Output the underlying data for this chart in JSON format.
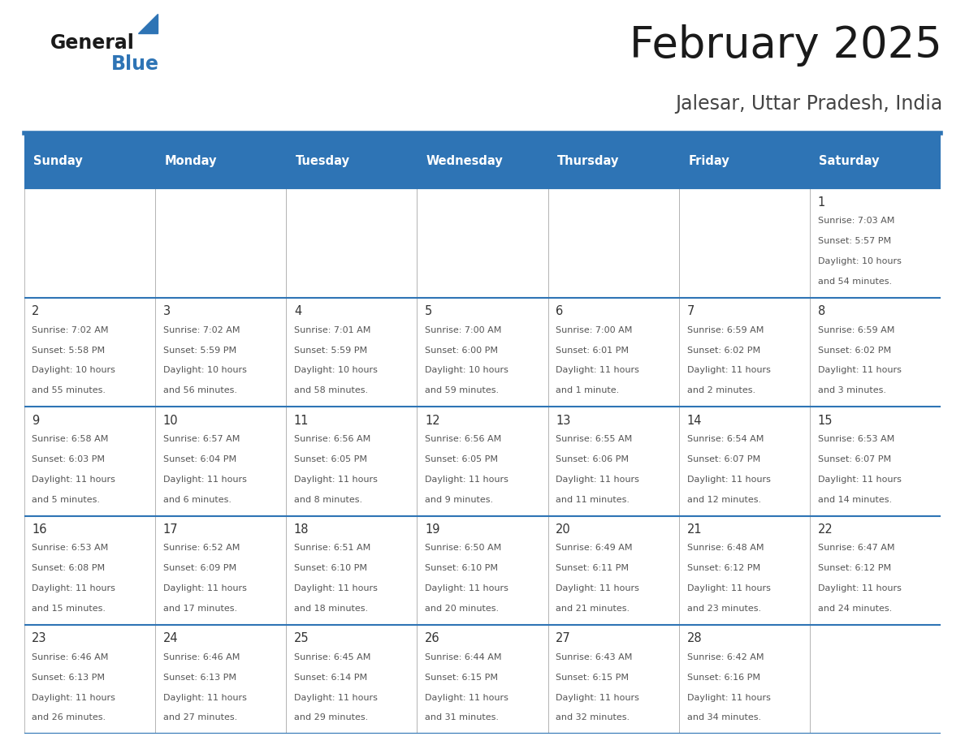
{
  "title": "February 2025",
  "subtitle": "Jalesar, Uttar Pradesh, India",
  "header_bg": "#2E74B5",
  "header_text_color": "#FFFFFF",
  "days_of_week": [
    "Sunday",
    "Monday",
    "Tuesday",
    "Wednesday",
    "Thursday",
    "Friday",
    "Saturday"
  ],
  "calendar_data": [
    [
      null,
      null,
      null,
      null,
      null,
      null,
      {
        "day": 1,
        "sunrise": "7:03 AM",
        "sunset": "5:57 PM",
        "daylight": "10 hours and 54 minutes."
      }
    ],
    [
      {
        "day": 2,
        "sunrise": "7:02 AM",
        "sunset": "5:58 PM",
        "daylight": "10 hours and 55 minutes."
      },
      {
        "day": 3,
        "sunrise": "7:02 AM",
        "sunset": "5:59 PM",
        "daylight": "10 hours and 56 minutes."
      },
      {
        "day": 4,
        "sunrise": "7:01 AM",
        "sunset": "5:59 PM",
        "daylight": "10 hours and 58 minutes."
      },
      {
        "day": 5,
        "sunrise": "7:00 AM",
        "sunset": "6:00 PM",
        "daylight": "10 hours and 59 minutes."
      },
      {
        "day": 6,
        "sunrise": "7:00 AM",
        "sunset": "6:01 PM",
        "daylight": "11 hours and 1 minute."
      },
      {
        "day": 7,
        "sunrise": "6:59 AM",
        "sunset": "6:02 PM",
        "daylight": "11 hours and 2 minutes."
      },
      {
        "day": 8,
        "sunrise": "6:59 AM",
        "sunset": "6:02 PM",
        "daylight": "11 hours and 3 minutes."
      }
    ],
    [
      {
        "day": 9,
        "sunrise": "6:58 AM",
        "sunset": "6:03 PM",
        "daylight": "11 hours and 5 minutes."
      },
      {
        "day": 10,
        "sunrise": "6:57 AM",
        "sunset": "6:04 PM",
        "daylight": "11 hours and 6 minutes."
      },
      {
        "day": 11,
        "sunrise": "6:56 AM",
        "sunset": "6:05 PM",
        "daylight": "11 hours and 8 minutes."
      },
      {
        "day": 12,
        "sunrise": "6:56 AM",
        "sunset": "6:05 PM",
        "daylight": "11 hours and 9 minutes."
      },
      {
        "day": 13,
        "sunrise": "6:55 AM",
        "sunset": "6:06 PM",
        "daylight": "11 hours and 11 minutes."
      },
      {
        "day": 14,
        "sunrise": "6:54 AM",
        "sunset": "6:07 PM",
        "daylight": "11 hours and 12 minutes."
      },
      {
        "day": 15,
        "sunrise": "6:53 AM",
        "sunset": "6:07 PM",
        "daylight": "11 hours and 14 minutes."
      }
    ],
    [
      {
        "day": 16,
        "sunrise": "6:53 AM",
        "sunset": "6:08 PM",
        "daylight": "11 hours and 15 minutes."
      },
      {
        "day": 17,
        "sunrise": "6:52 AM",
        "sunset": "6:09 PM",
        "daylight": "11 hours and 17 minutes."
      },
      {
        "day": 18,
        "sunrise": "6:51 AM",
        "sunset": "6:10 PM",
        "daylight": "11 hours and 18 minutes."
      },
      {
        "day": 19,
        "sunrise": "6:50 AM",
        "sunset": "6:10 PM",
        "daylight": "11 hours and 20 minutes."
      },
      {
        "day": 20,
        "sunrise": "6:49 AM",
        "sunset": "6:11 PM",
        "daylight": "11 hours and 21 minutes."
      },
      {
        "day": 21,
        "sunrise": "6:48 AM",
        "sunset": "6:12 PM",
        "daylight": "11 hours and 23 minutes."
      },
      {
        "day": 22,
        "sunrise": "6:47 AM",
        "sunset": "6:12 PM",
        "daylight": "11 hours and 24 minutes."
      }
    ],
    [
      {
        "day": 23,
        "sunrise": "6:46 AM",
        "sunset": "6:13 PM",
        "daylight": "11 hours and 26 minutes."
      },
      {
        "day": 24,
        "sunrise": "6:46 AM",
        "sunset": "6:13 PM",
        "daylight": "11 hours and 27 minutes."
      },
      {
        "day": 25,
        "sunrise": "6:45 AM",
        "sunset": "6:14 PM",
        "daylight": "11 hours and 29 minutes."
      },
      {
        "day": 26,
        "sunrise": "6:44 AM",
        "sunset": "6:15 PM",
        "daylight": "11 hours and 31 minutes."
      },
      {
        "day": 27,
        "sunrise": "6:43 AM",
        "sunset": "6:15 PM",
        "daylight": "11 hours and 32 minutes."
      },
      {
        "day": 28,
        "sunrise": "6:42 AM",
        "sunset": "6:16 PM",
        "daylight": "11 hours and 34 minutes."
      },
      null
    ]
  ],
  "border_color": "#2E74B5",
  "cell_border_color": "#AAAAAA",
  "day_number_color": "#333333",
  "info_text_color": "#555555",
  "logo_general_color": "#1A1A1A",
  "logo_blue_color": "#2E74B5",
  "title_color": "#1A1A1A",
  "subtitle_color": "#444444"
}
